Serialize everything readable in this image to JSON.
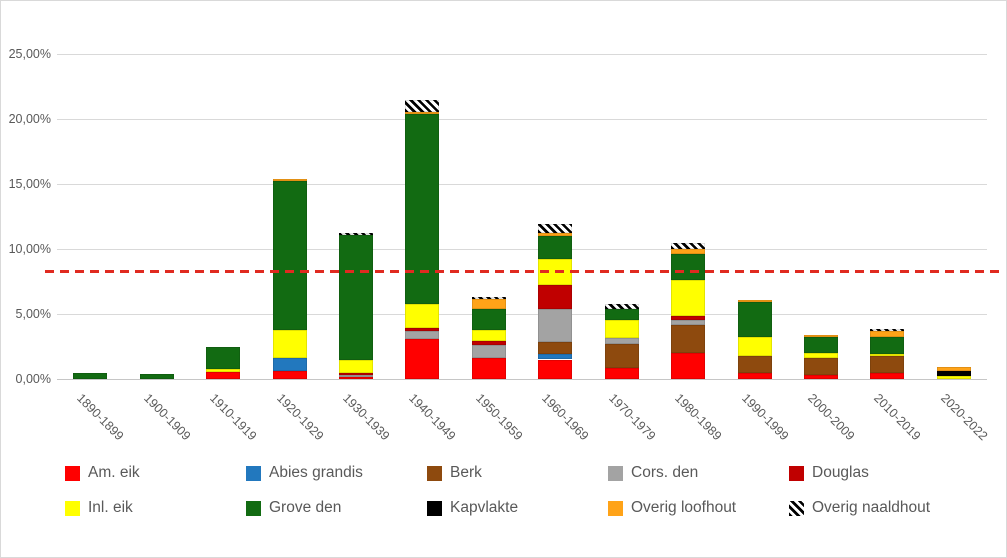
{
  "chart_data": {
    "type": "bar",
    "stacked": true,
    "title": "",
    "xlabel": "",
    "ylabel": "",
    "ylim": [
      0,
      26.5
    ],
    "grid": true,
    "y_tick_format": "percent-comma-2dp",
    "y_ticks": [
      {
        "value": 0,
        "label": "0,00%"
      },
      {
        "value": 5,
        "label": "5,00%"
      },
      {
        "value": 10,
        "label": "10,00%"
      },
      {
        "value": 15,
        "label": "15,00%"
      },
      {
        "value": 20,
        "label": "20,00%"
      },
      {
        "value": 25,
        "label": "25,00%"
      }
    ],
    "categories": [
      "1890-1899",
      "1900-1909",
      "1910-1919",
      "1920-1929",
      "1930-1939",
      "1940-1949",
      "1950-1959",
      "1960-1969",
      "1970-1979",
      "1980-1989",
      "1990-1999",
      "2000-2009",
      "2010-2019",
      "2020-2022"
    ],
    "series": [
      {
        "name": "Am. eik",
        "key": "am-eik",
        "color": "#ff0000",
        "pattern": "solid",
        "values": [
          0,
          0,
          0.55,
          0.6,
          0.15,
          3.1,
          1.6,
          1.5,
          0.85,
          2.0,
          0.45,
          0.3,
          0.45,
          0
        ]
      },
      {
        "name": "Abies grandis",
        "key": "abies-grandis",
        "color": "#2278be",
        "pattern": "solid",
        "values": [
          0,
          0,
          0,
          1.0,
          0,
          0,
          0,
          0.4,
          0,
          0,
          0,
          0,
          0,
          0
        ]
      },
      {
        "name": "Berk",
        "key": "berk",
        "color": "#8e4a0e",
        "pattern": "solid",
        "values": [
          0,
          0,
          0,
          0,
          0,
          0,
          0,
          0.95,
          1.85,
          2.15,
          1.35,
          1.3,
          1.35,
          0
        ]
      },
      {
        "name": "Cors. den",
        "key": "cors-den",
        "color": "#a3a3a3",
        "pattern": "solid",
        "values": [
          0,
          0,
          0,
          0,
          0.15,
          0.6,
          1.0,
          2.55,
          0.45,
          0.4,
          0,
          0,
          0,
          0
        ]
      },
      {
        "name": "Douglas",
        "key": "douglas",
        "color": "#c00000",
        "pattern": "solid",
        "values": [
          0,
          0,
          0,
          0,
          0.15,
          0.25,
          0.3,
          1.8,
          0,
          0.3,
          0,
          0,
          0,
          0
        ]
      },
      {
        "name": "Inl. eik",
        "key": "inl-eik",
        "color": "#ffff00",
        "pattern": "solid",
        "values": [
          0,
          0,
          0.2,
          2.2,
          1.0,
          1.85,
          0.9,
          2.0,
          1.4,
          2.8,
          1.4,
          0.4,
          0.1,
          0.2
        ]
      },
      {
        "name": "Grove den",
        "key": "grove-den",
        "color": "#126b12",
        "pattern": "solid",
        "values": [
          0.45,
          0.4,
          1.75,
          11.4,
          9.6,
          14.6,
          1.6,
          1.8,
          0.85,
          1.95,
          2.75,
          1.25,
          1.3,
          0
        ]
      },
      {
        "name": "Kapvlakte",
        "key": "kapvlakte",
        "color": "#000000",
        "pattern": "solid",
        "values": [
          0,
          0,
          0,
          0,
          0,
          0,
          0,
          0,
          0,
          0,
          0,
          0,
          0,
          0.45
        ]
      },
      {
        "name": "Overig loofhout",
        "key": "overig-loofhout",
        "color": "#ffa318",
        "pattern": "solid",
        "values": [
          0,
          0,
          0,
          0.15,
          0,
          0.15,
          0.75,
          0.2,
          0,
          0.4,
          0.15,
          0.1,
          0.5,
          0.3
        ]
      },
      {
        "name": "Overig naaldhout",
        "key": "overig-naaldhout",
        "color": "#000000",
        "pattern": "hatched",
        "values": [
          0,
          0,
          0,
          0,
          0.15,
          0.9,
          0.15,
          0.75,
          0.4,
          0.45,
          0,
          0,
          0.1,
          0
        ]
      }
    ],
    "reference_line": {
      "value": 8.3,
      "color": "#e02a20",
      "style": "dashed"
    },
    "legend_position": "bottom",
    "legend_rows": 2,
    "colors": {
      "gridline": "#d9d9d9",
      "axis_line": "#c6c6c6",
      "tick_text": "#595959",
      "background": "#ffffff"
    }
  }
}
